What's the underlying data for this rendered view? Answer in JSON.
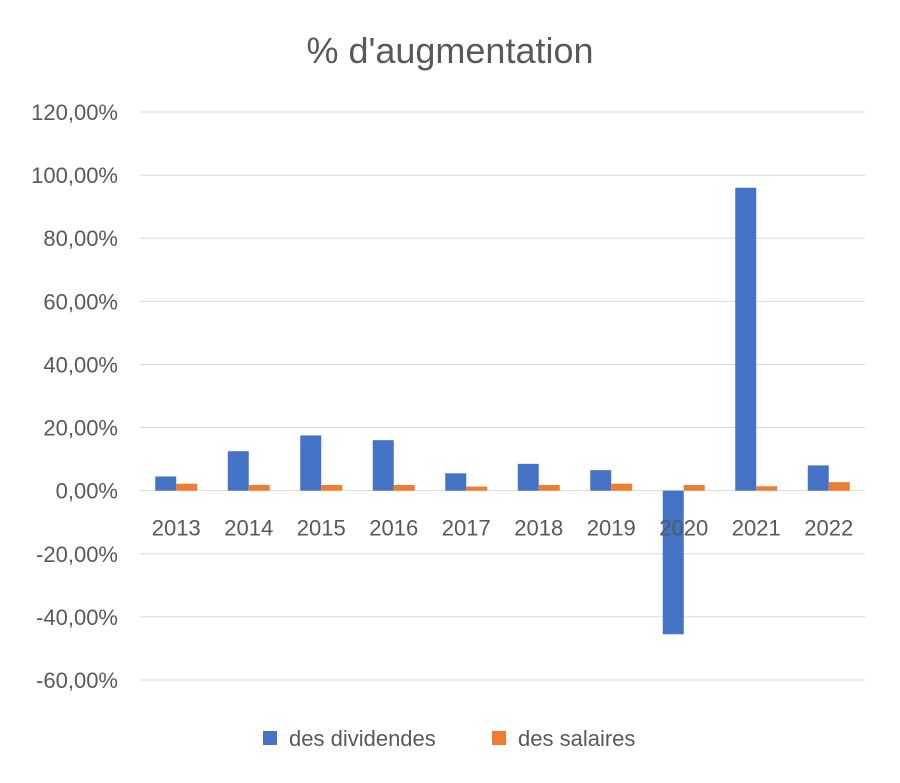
{
  "chart_data": {
    "type": "bar",
    "title": "% d'augmentation",
    "xlabel": "",
    "ylabel": "",
    "categories": [
      "2013",
      "2014",
      "2015",
      "2016",
      "2017",
      "2018",
      "2019",
      "2020",
      "2021",
      "2022"
    ],
    "series": [
      {
        "name": "des dividendes",
        "color": "#4472c4",
        "values": [
          4.5,
          12.5,
          17.5,
          16.0,
          5.5,
          8.5,
          6.5,
          -45.5,
          96.0,
          8.0
        ]
      },
      {
        "name": "des salaires",
        "color": "#ed7d31",
        "values": [
          2.2,
          1.8,
          1.8,
          1.8,
          1.3,
          1.8,
          2.2,
          1.8,
          1.4,
          2.7
        ]
      }
    ],
    "ylim": [
      -60,
      120
    ],
    "yticks": [
      -60,
      -40,
      -20,
      0,
      20,
      40,
      60,
      80,
      100,
      120
    ],
    "ytick_labels": [
      "-60,00%",
      "-40,00%",
      "-20,00%",
      "0,00%",
      "20,00%",
      "40,00%",
      "60,00%",
      "80,00%",
      "100,00%",
      "120,00%"
    ],
    "grid": true,
    "legend": "bottom"
  }
}
